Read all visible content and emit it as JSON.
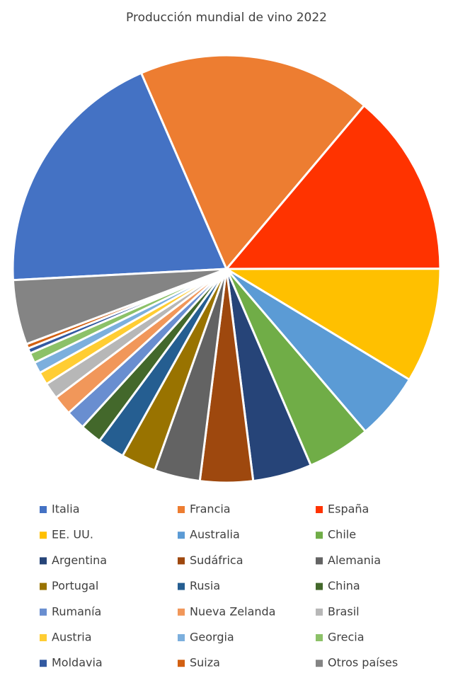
{
  "chart_data": {
    "type": "pie",
    "title": "Producción mundial de vino 2022",
    "categories": [
      "Italia",
      "Francia",
      "España",
      "EE. UU.",
      "Australia",
      "Chile",
      "Argentina",
      "Sudáfrica",
      "Alemania",
      "Portugal",
      "Rusia",
      "China",
      "Rumanía",
      "Nueva Zelanda",
      "Brasil",
      "Austria",
      "Georgia",
      "Grecia",
      "Moldavia",
      "Suiza",
      "Otros países"
    ],
    "values": [
      49.8,
      45.6,
      35.7,
      22.4,
      13.1,
      12.4,
      11.5,
      10.3,
      8.9,
      6.8,
      5.3,
      4.2,
      3.8,
      3.8,
      3.2,
      2.5,
      2.2,
      2.0,
      1.0,
      0.9,
      12.6
    ],
    "colors": [
      "#4472c4",
      "#ed7d31",
      "#ff3300",
      "#ffc000",
      "#5b9bd5",
      "#70ad47",
      "#264478",
      "#9e480e",
      "#636363",
      "#997300",
      "#255e91",
      "#43682b",
      "#698ed0",
      "#f1975a",
      "#b7b7b7",
      "#ffcd33",
      "#7cafdd",
      "#8cc168",
      "#335aa1",
      "#d26012",
      "#848484"
    ],
    "legend": "bottom"
  }
}
